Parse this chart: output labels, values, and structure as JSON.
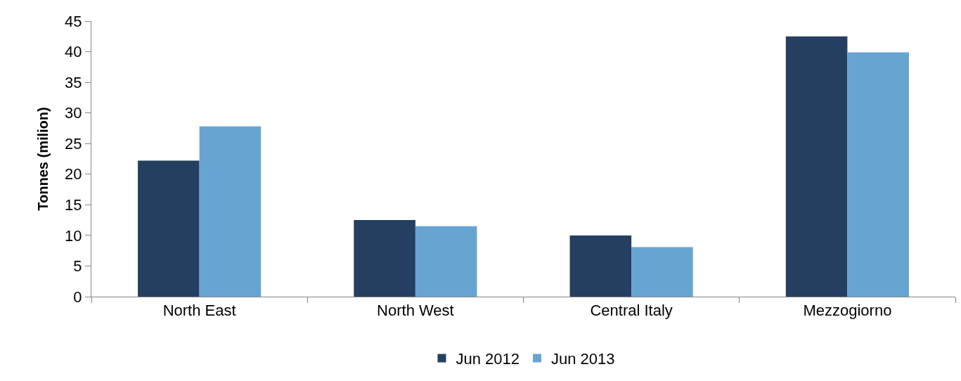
{
  "chart_data": {
    "type": "bar",
    "ylabel": "Tonnes (milion)",
    "categories": [
      "North East",
      "North West",
      "Central Italy",
      "Mezzogiorno"
    ],
    "series": [
      {
        "name": "Jun 2012",
        "color": "#253f60",
        "values": [
          22.2,
          12.5,
          10.0,
          42.5
        ]
      },
      {
        "name": "Jun 2013",
        "color": "#67a4d2",
        "values": [
          27.8,
          11.5,
          8.1,
          39.9
        ]
      }
    ],
    "ylim": [
      0,
      45
    ],
    "yticks": [
      0,
      5,
      10,
      15,
      20,
      25,
      30,
      35,
      40,
      45
    ],
    "grid": false,
    "legend": "bottom"
  }
}
